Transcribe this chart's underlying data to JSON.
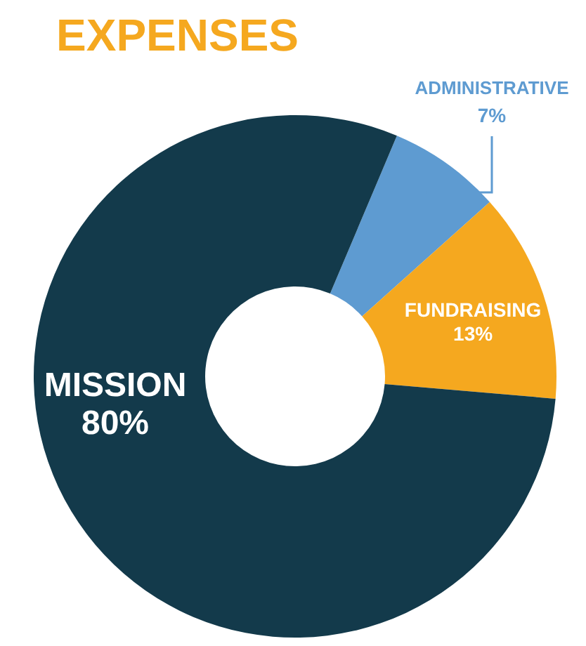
{
  "chart_data": {
    "type": "donut",
    "title": "EXPENSES",
    "categories": [
      "ADMINISTRATIVE",
      "FUNDRAISING",
      "MISSION"
    ],
    "values": [
      7,
      13,
      80
    ],
    "colors": [
      "#5e9bd1",
      "#f5a81f",
      "#133a4b"
    ],
    "value_labels": [
      "7%",
      "13%",
      "80%"
    ]
  }
}
